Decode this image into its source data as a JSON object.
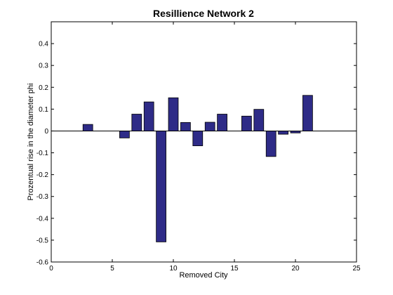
{
  "chart_data": {
    "type": "bar",
    "title": "Resillience Network 2",
    "xlabel": "Removed City",
    "ylabel": "Prozentual rise in the diameter phi",
    "xlim": [
      0,
      25
    ],
    "ylim": [
      -0.6,
      0.5
    ],
    "xticks": [
      0,
      5,
      10,
      15,
      20,
      25
    ],
    "yticks": [
      -0.6,
      -0.5,
      -0.4,
      -0.3,
      -0.2,
      -0.1,
      0,
      0.1,
      0.2,
      0.3,
      0.4
    ],
    "grid": false,
    "bar_color": "#2e2b87",
    "x": [
      1,
      2,
      3,
      4,
      5,
      6,
      7,
      8,
      9,
      10,
      11,
      12,
      13,
      14,
      15,
      16,
      17,
      18,
      19,
      20,
      21,
      22
    ],
    "values": [
      0,
      0,
      0.03,
      0,
      0,
      -0.032,
      0.077,
      0.133,
      -0.508,
      0.152,
      0.039,
      -0.068,
      0.04,
      0.077,
      0,
      0.068,
      0.099,
      -0.117,
      -0.015,
      -0.009,
      0.163,
      0
    ]
  }
}
